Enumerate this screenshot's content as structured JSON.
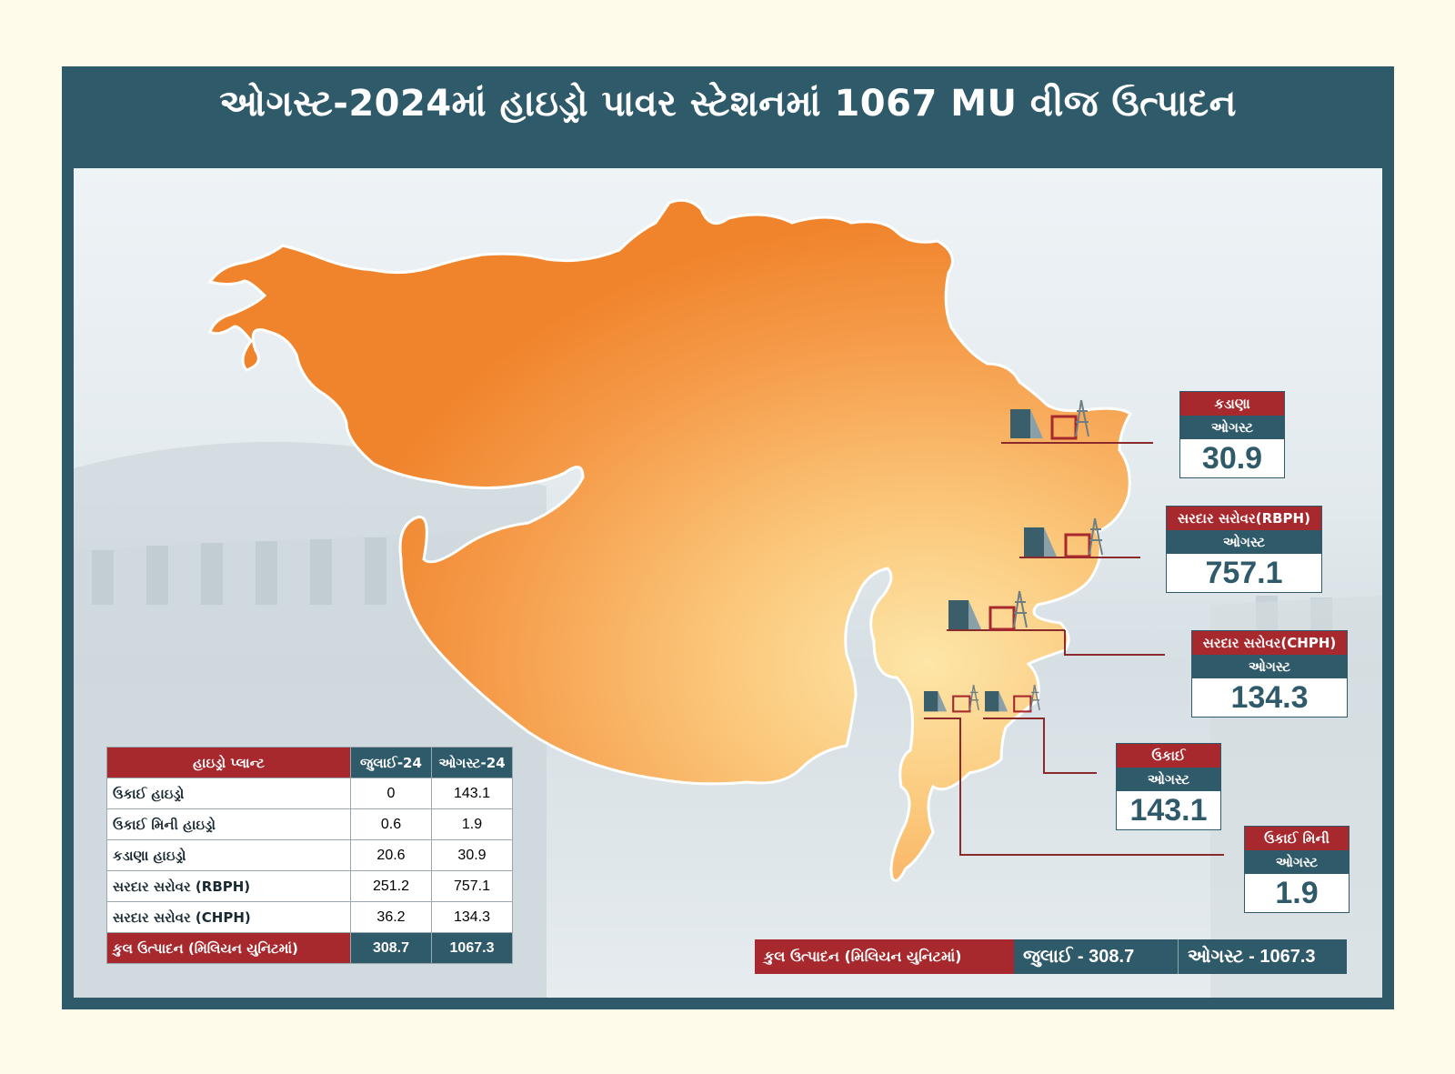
{
  "title": "ઓગસ્ટ-2024માં હાઇડ્રો પાવર સ્ટેશનમાં 1067 MU વીજ ઉત્પાદન",
  "colors": {
    "frame": "#2f5a6a",
    "accent_red": "#a7282d",
    "map_orange": "#f0842c",
    "map_light": "#fbd58e"
  },
  "callouts": [
    {
      "plant": "કડાણા",
      "month": "ઓગસ્ટ",
      "value": "30.9"
    },
    {
      "plant": "સરદાર સરોવર(RBPH)",
      "month": "ઓગસ્ટ",
      "value": "757.1"
    },
    {
      "plant": "સરદાર સરોવર(CHPH)",
      "month": "ઓગસ્ટ",
      "value": "134.3"
    },
    {
      "plant": "ઉકાઈ",
      "month": "ઓગસ્ટ",
      "value": "143.1"
    },
    {
      "plant": "ઉકાઈ મિની",
      "month": "ઓગસ્ટ",
      "value": "1.9"
    }
  ],
  "icons": [
    "dam-icon",
    "power-tower-icon",
    "powerhouse-icon"
  ],
  "table": {
    "headers": [
      "હાઇડ્રો પ્લાન્ટ",
      "જુલાઈ-24",
      "ઓગસ્ટ-24"
    ],
    "rows": [
      [
        "ઉકાઈ હાઇડ્રો",
        "0",
        "143.1"
      ],
      [
        "ઉકાઈ મિની હાઇડ્રો",
        "0.6",
        "1.9"
      ],
      [
        "કડાણા હાઇડ્રો",
        "20.6",
        "30.9"
      ],
      [
        "સરદાર સરોવર (RBPH)",
        "251.2",
        "757.1"
      ],
      [
        "સરદાર સરોવર (CHPH)",
        "36.2",
        "134.3"
      ]
    ],
    "total": [
      "કુલ ઉત્પાદન (મિલિયન યુનિટમાં)",
      "308.7",
      "1067.3"
    ]
  },
  "total_bar": {
    "label": "કુલ ઉત્પાદન (મિલિયન યુનિટમાં)",
    "july": "જુલાઈ - 308.7",
    "august": "ઓગસ્ટ - 1067.3"
  }
}
